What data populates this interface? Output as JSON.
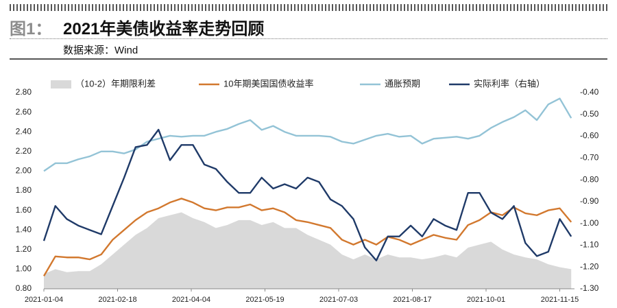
{
  "header": {
    "label": "图1：",
    "title": "2021年美债收益率走势回顾",
    "source": "数据来源：Wind"
  },
  "chart_data": {
    "type": "line",
    "x": [
      "2021-01-04",
      "2021-01-11",
      "2021-01-18",
      "2021-01-25",
      "2021-02-01",
      "2021-02-08",
      "2021-02-15",
      "2021-02-22",
      "2021-03-01",
      "2021-03-08",
      "2021-03-15",
      "2021-03-22",
      "2021-03-29",
      "2021-04-05",
      "2021-04-12",
      "2021-04-19",
      "2021-04-26",
      "2021-05-03",
      "2021-05-10",
      "2021-05-17",
      "2021-05-24",
      "2021-05-31",
      "2021-06-07",
      "2021-06-14",
      "2021-06-21",
      "2021-06-28",
      "2021-07-05",
      "2021-07-12",
      "2021-07-19",
      "2021-07-26",
      "2021-08-02",
      "2021-08-09",
      "2021-08-16",
      "2021-08-23",
      "2021-08-30",
      "2021-09-06",
      "2021-09-13",
      "2021-09-20",
      "2021-09-27",
      "2021-10-04",
      "2021-10-11",
      "2021-10-18",
      "2021-10-25",
      "2021-11-01",
      "2021-11-08",
      "2021-11-15",
      "2021-11-22"
    ],
    "xlim": [
      "2021-01-04",
      "2021-11-24"
    ],
    "xticks": [
      "2021-01-04",
      "2021-02-18",
      "2021-04-04",
      "2021-05-19",
      "2021-07-03",
      "2021-08-17",
      "2021-10-01",
      "2021-11-15"
    ],
    "ylim": [
      0.8,
      2.8
    ],
    "yticks": [
      {
        "value": 0.8,
        "label": "0.80"
      },
      {
        "value": 1.0,
        "label": "1.00"
      },
      {
        "value": 1.2,
        "label": "1.20"
      },
      {
        "value": 1.4,
        "label": "1.40"
      },
      {
        "value": 1.6,
        "label": "1.60"
      },
      {
        "value": 1.8,
        "label": "1.80"
      },
      {
        "value": 2.0,
        "label": "2.00"
      },
      {
        "value": 2.2,
        "label": "2.20"
      },
      {
        "value": 2.4,
        "label": "2.40"
      },
      {
        "value": 2.6,
        "label": "2.60"
      },
      {
        "value": 2.8,
        "label": "2.80"
      }
    ],
    "y2lim": [
      -1.3,
      -0.4
    ],
    "y2ticks": [
      {
        "value": -1.3,
        "label": "-1.30"
      },
      {
        "value": -1.2,
        "label": "-1.20"
      },
      {
        "value": -1.1,
        "label": "-1.10"
      },
      {
        "value": -1.0,
        "label": "-1.00"
      },
      {
        "value": -0.9,
        "label": "-0.90"
      },
      {
        "value": -0.8,
        "label": "-0.80"
      },
      {
        "value": -0.7,
        "label": "-0.70"
      },
      {
        "value": -0.6,
        "label": "-0.60"
      },
      {
        "value": -0.5,
        "label": "-0.50"
      },
      {
        "value": -0.4,
        "label": "-0.40"
      }
    ],
    "series": [
      {
        "name": "（10-2）年期限利差",
        "kind": "area",
        "color": "#d9d9d9",
        "values": [
          0.95,
          1.0,
          0.97,
          0.98,
          0.98,
          1.05,
          1.15,
          1.25,
          1.35,
          1.42,
          1.52,
          1.55,
          1.58,
          1.52,
          1.48,
          1.42,
          1.45,
          1.5,
          1.5,
          1.45,
          1.48,
          1.42,
          1.42,
          1.35,
          1.3,
          1.25,
          1.15,
          1.1,
          1.15,
          1.1,
          1.15,
          1.12,
          1.12,
          1.1,
          1.12,
          1.15,
          1.12,
          1.22,
          1.25,
          1.28,
          1.2,
          1.15,
          1.12,
          1.1,
          1.05,
          1.02,
          1.0
        ]
      },
      {
        "name": "10年期美国国债收益率",
        "kind": "line",
        "color": "#d2782e",
        "values": [
          0.93,
          1.13,
          1.12,
          1.12,
          1.1,
          1.15,
          1.3,
          1.4,
          1.5,
          1.58,
          1.62,
          1.68,
          1.72,
          1.68,
          1.62,
          1.6,
          1.63,
          1.63,
          1.66,
          1.6,
          1.62,
          1.58,
          1.5,
          1.48,
          1.45,
          1.42,
          1.3,
          1.25,
          1.3,
          1.25,
          1.33,
          1.3,
          1.25,
          1.3,
          1.35,
          1.32,
          1.3,
          1.45,
          1.5,
          1.58,
          1.55,
          1.63,
          1.57,
          1.55,
          1.6,
          1.62,
          1.48
        ]
      },
      {
        "name": "通胀预期",
        "kind": "line",
        "color": "#93c3d6",
        "values": [
          2.0,
          2.08,
          2.08,
          2.12,
          2.15,
          2.2,
          2.2,
          2.18,
          2.22,
          2.3,
          2.33,
          2.36,
          2.35,
          2.36,
          2.36,
          2.4,
          2.43,
          2.48,
          2.52,
          2.42,
          2.46,
          2.4,
          2.36,
          2.36,
          2.36,
          2.35,
          2.3,
          2.28,
          2.32,
          2.36,
          2.38,
          2.35,
          2.36,
          2.28,
          2.33,
          2.34,
          2.35,
          2.33,
          2.36,
          2.44,
          2.5,
          2.55,
          2.62,
          2.52,
          2.68,
          2.74,
          2.54
        ]
      },
      {
        "name": "实际利率（右轴）",
        "kind": "line",
        "axis": "y2",
        "color": "#1f3a68",
        "values": [
          -1.08,
          -0.92,
          -0.98,
          -1.01,
          -1.03,
          -1.05,
          -0.92,
          -0.79,
          -0.65,
          -0.64,
          -0.57,
          -0.71,
          -0.64,
          -0.64,
          -0.73,
          -0.75,
          -0.81,
          -0.86,
          -0.86,
          -0.79,
          -0.84,
          -0.82,
          -0.84,
          -0.79,
          -0.81,
          -0.89,
          -0.92,
          -0.98,
          -1.11,
          -1.17,
          -1.06,
          -1.06,
          -1.01,
          -1.06,
          -0.98,
          -1.01,
          -1.03,
          -0.86,
          -0.86,
          -0.95,
          -0.98,
          -0.92,
          -1.09,
          -1.15,
          -1.13,
          -0.98,
          -1.06
        ]
      }
    ]
  }
}
